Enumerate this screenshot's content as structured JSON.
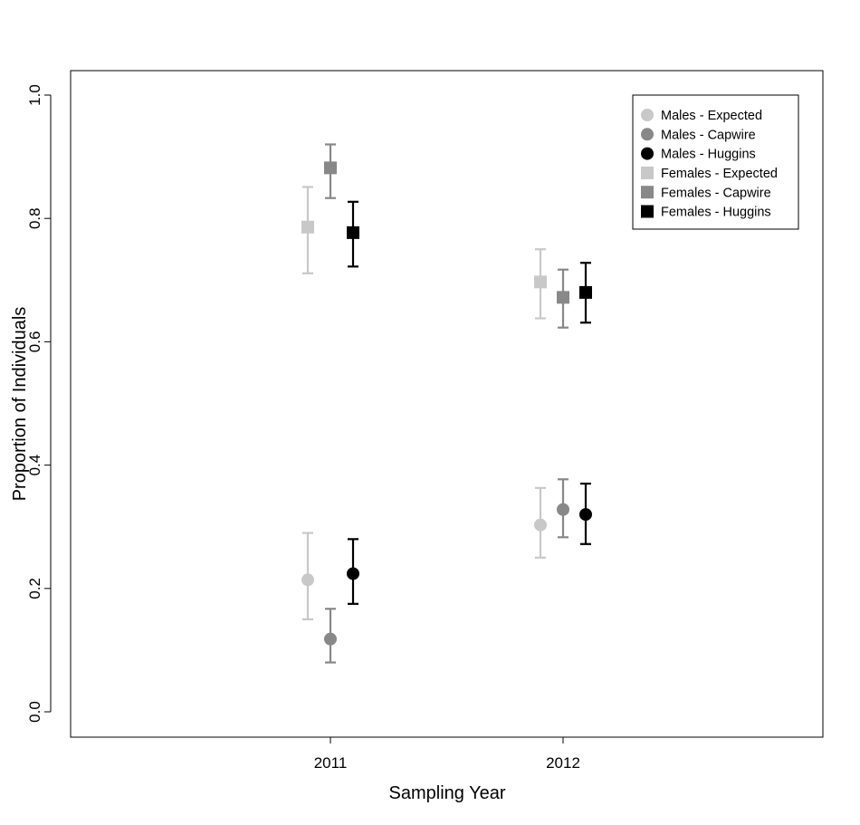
{
  "chart_data": {
    "type": "scatter",
    "title": "",
    "xlabel": "Sampling Year",
    "ylabel": "Proportion of Individuals",
    "categories": [
      "2011",
      "2012"
    ],
    "ylim": [
      0,
      1
    ],
    "yticks": [
      "0.0",
      "0.2",
      "0.4",
      "0.6",
      "0.8",
      "1.0"
    ],
    "grid": false,
    "legend_position": "top-right",
    "series": [
      {
        "name": "Males - Expected",
        "shape": "circle",
        "color": "#c8c8c8",
        "values": [
          0.214,
          0.303
        ],
        "lower": [
          0.15,
          0.25
        ],
        "upper": [
          0.29,
          0.363
        ]
      },
      {
        "name": "Males - Capwire",
        "shape": "circle",
        "color": "#888888",
        "values": [
          0.118,
          0.328
        ],
        "lower": [
          0.08,
          0.283
        ],
        "upper": [
          0.167,
          0.377
        ]
      },
      {
        "name": "Males - Huggins",
        "shape": "circle",
        "color": "#000000",
        "values": [
          0.224,
          0.32
        ],
        "lower": [
          0.175,
          0.272
        ],
        "upper": [
          0.28,
          0.37
        ]
      },
      {
        "name": "Females - Expected",
        "shape": "square",
        "color": "#c8c8c8",
        "values": [
          0.786,
          0.697
        ],
        "lower": [
          0.711,
          0.638
        ],
        "upper": [
          0.851,
          0.75
        ]
      },
      {
        "name": "Females - Capwire",
        "shape": "square",
        "color": "#888888",
        "values": [
          0.882,
          0.672
        ],
        "lower": [
          0.833,
          0.623
        ],
        "upper": [
          0.92,
          0.717
        ]
      },
      {
        "name": "Females - Huggins",
        "shape": "square",
        "color": "#000000",
        "values": [
          0.777,
          0.68
        ],
        "lower": [
          0.722,
          0.631
        ],
        "upper": [
          0.827,
          0.728
        ]
      }
    ]
  }
}
